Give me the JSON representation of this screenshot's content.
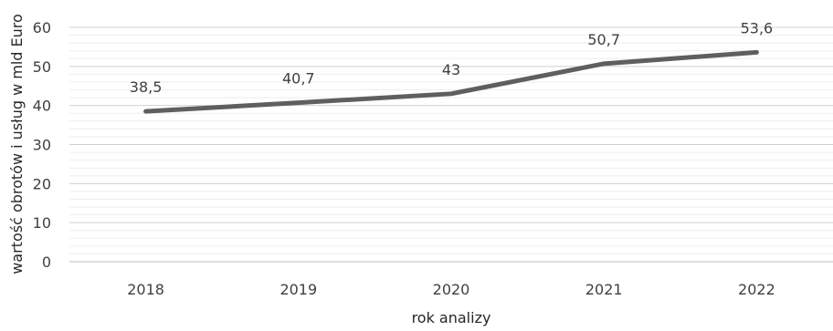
{
  "chart_data": {
    "type": "line",
    "title": "",
    "xlabel": "rok analizy",
    "ylabel": "wartość obrotów i usług w mld Euro",
    "categories": [
      "2018",
      "2019",
      "2020",
      "2021",
      "2022"
    ],
    "series": [
      {
        "values": [
          38.5,
          40.7,
          43,
          50.7,
          53.6
        ],
        "labels": [
          "38,5",
          "40,7",
          "43",
          "50,7",
          "53,6"
        ],
        "color": "#5f5f5f"
      }
    ],
    "ylim": [
      0,
      60
    ],
    "yticks": [
      0,
      10,
      20,
      30,
      40,
      50,
      60
    ],
    "grid": true,
    "minor_grid": true,
    "legend": "none"
  }
}
